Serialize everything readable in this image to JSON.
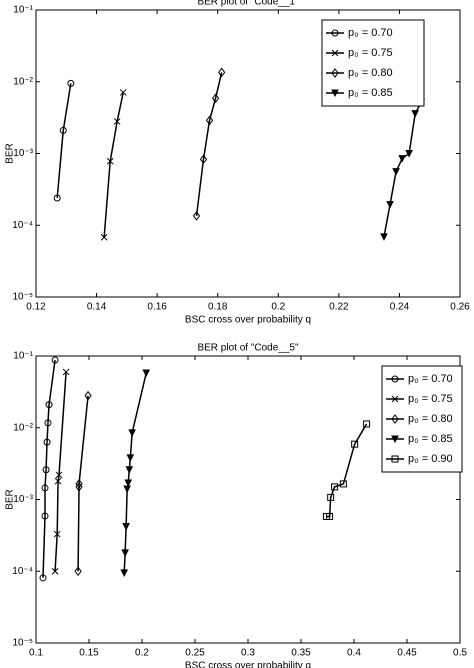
{
  "chart_data": [
    {
      "type": "line",
      "title": "BER plot of \"Code__1\"",
      "xlabel": "BSC cross over probability q",
      "ylabel": "BER",
      "xlim": [
        0.12,
        0.26
      ],
      "xticks": [
        0.12,
        0.14,
        0.16,
        0.18,
        0.2,
        0.22,
        0.24,
        0.26
      ],
      "ylim": [
        1e-05,
        0.1
      ],
      "ylog": true,
      "yticks": [
        {
          "value": 1e-05,
          "label": "10⁻⁵"
        },
        {
          "value": 0.0001,
          "label": "10⁻⁴"
        },
        {
          "value": 0.001,
          "label": "10⁻³"
        },
        {
          "value": 0.01,
          "label": "10⁻²"
        },
        {
          "value": 0.1,
          "label": "10⁻¹"
        }
      ],
      "legend": "upper right",
      "series": [
        {
          "name": "p₀ = 0.70",
          "color": "#000000",
          "marker": "circle",
          "x": [
            0.127,
            0.129,
            0.1315
          ],
          "values": [
            0.00024,
            0.0021,
            0.0095
          ]
        },
        {
          "name": "p₀ = 0.75",
          "color": "#000000",
          "marker": "x",
          "x": [
            0.1425,
            0.1445,
            0.1468,
            0.1488
          ],
          "values": [
            6.8e-05,
            0.00078,
            0.0028,
            0.0071
          ]
        },
        {
          "name": "p₀ = 0.80",
          "color": "#000000",
          "marker": "diamond",
          "x": [
            0.173,
            0.1753,
            0.1773,
            0.1793,
            0.1813
          ],
          "values": [
            0.000135,
            0.00083,
            0.0029,
            0.0059,
            0.0135
          ]
        },
        {
          "name": "p₀ = 0.85",
          "color": "#000000",
          "marker": "triangle-down",
          "x": [
            0.2349,
            0.2369,
            0.2389,
            0.2409,
            0.2432,
            0.2452,
            0.2472
          ],
          "values": [
            6.9e-05,
            0.000195,
            0.00056,
            0.00085,
            0.001,
            0.0036,
            0.0052
          ]
        }
      ]
    },
    {
      "type": "line",
      "title": "BER plot of \"Code__5\"",
      "xlabel": "BSC cross over probability q",
      "ylabel": "BER",
      "xlim": [
        0.1,
        0.5
      ],
      "xticks": [
        0.1,
        0.15,
        0.2,
        0.25,
        0.3,
        0.35,
        0.4,
        0.45,
        0.5
      ],
      "ylim": [
        1e-05,
        0.1
      ],
      "ylog": true,
      "yticks": [
        {
          "value": 1e-05,
          "label": "10⁻⁵"
        },
        {
          "value": 0.0001,
          "label": "10⁻⁴"
        },
        {
          "value": 0.001,
          "label": "10⁻³"
        },
        {
          "value": 0.01,
          "label": "10⁻²"
        },
        {
          "value": 0.1,
          "label": "10⁻¹"
        }
      ],
      "legend": "upper right",
      "series": [
        {
          "name": "p₀ = 0.70",
          "color": "#000000",
          "marker": "circle",
          "x": [
            0.1066,
            0.1085,
            0.1085,
            0.1095,
            0.1104,
            0.1113,
            0.1123,
            0.118
          ],
          "values": [
            8.1e-05,
            0.00059,
            0.00145,
            0.0026,
            0.0063,
            0.0117,
            0.021,
            0.088
          ]
        },
        {
          "name": "p₀ = 0.75",
          "color": "#000000",
          "marker": "x",
          "x": [
            0.118,
            0.12,
            0.1208,
            0.1217,
            0.1284
          ],
          "values": [
            0.0001,
            0.00033,
            0.0018,
            0.0022,
            0.06
          ]
        },
        {
          "name": "p₀ = 0.80",
          "color": "#000000",
          "marker": "diamond",
          "x": [
            0.1397,
            0.1406,
            0.1406,
            0.1491
          ],
          "values": [
            0.0001,
            0.0015,
            0.00165,
            0.028
          ]
        },
        {
          "name": "p₀ = 0.85",
          "color": "#000000",
          "marker": "triangle-down",
          "x": [
            0.1832,
            0.1841,
            0.185,
            0.186,
            0.187,
            0.188,
            0.189,
            0.1907,
            0.204
          ],
          "values": [
            9.5e-05,
            0.00018,
            0.00042,
            0.0014,
            0.0017,
            0.0026,
            0.0038,
            0.0085,
            0.058
          ]
        },
        {
          "name": "p₀ = 0.90",
          "color": "#000000",
          "marker": "square",
          "x": [
            0.374,
            0.377,
            0.378,
            0.3817,
            0.39,
            0.4006,
            0.4119
          ],
          "values": [
            0.00058,
            0.00058,
            0.00107,
            0.0015,
            0.00165,
            0.0059,
            0.0113
          ]
        }
      ]
    }
  ]
}
